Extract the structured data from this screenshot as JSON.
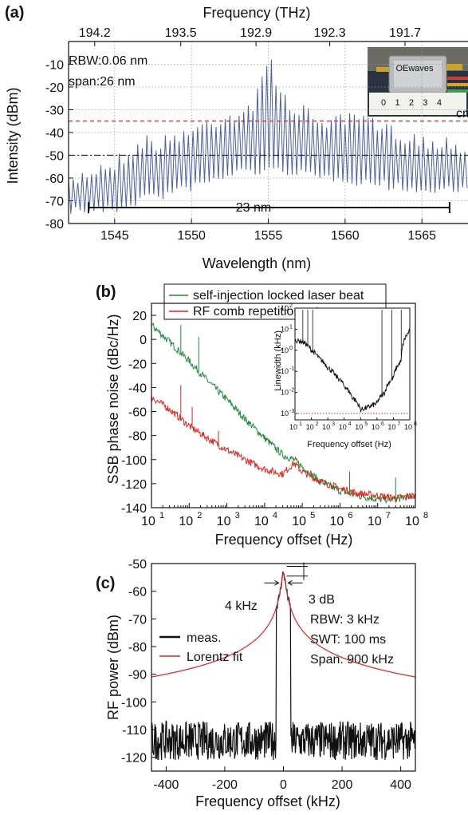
{
  "panels": {
    "a": {
      "label": "(a)",
      "top_axis_title": "Frequency (THz)",
      "x_axis_title": "Wavelength (nm)",
      "y_axis_title": "Intensity (dBm)",
      "annotations": {
        "rbw": "RBW:0.06 nm",
        "span": "span:26 nm",
        "width": "23 nm"
      },
      "inset": {
        "logo": "OEwaves",
        "scale_digits": "0 1 2 3 4",
        "scale_unit": "cm"
      }
    },
    "b": {
      "label": "(b)",
      "x_axis_title": "Frequency offset (Hz)",
      "y_axis_title": "SSB phase noise (dBc/Hz)",
      "inset": {
        "x_axis_title": "Frequency offset (Hz)",
        "y_axis_title": "Linewidth (kHz)"
      }
    },
    "c": {
      "label": "(c)",
      "x_axis_title": "Frequency offset (kHz)",
      "y_axis_title": "RF power (dBm)",
      "annotations": {
        "fwhm": "4 kHz",
        "db": "3 dB",
        "rbw": "RBW: 3 kHz",
        "swt": "SWT: 100 ms",
        "span": "Span: 900 kHz"
      }
    }
  },
  "colors": {
    "spectrum": "#4a5fa8",
    "green": "#1e8c3a",
    "red": "#e0261e",
    "black": "#111111",
    "red_dash": "#e0261e",
    "black_dash": "#222222"
  },
  "chart_data": [
    {
      "id": "a",
      "type": "line",
      "xlabel": "Wavelength (nm)",
      "ylabel": "Intensity (dBm)",
      "x2label": "Frequency (THz)",
      "xlim": [
        1542,
        1568
      ],
      "ylim": [
        -80,
        0
      ],
      "x_ticks": [
        "1545",
        "1550",
        "1555",
        "1560",
        "1565"
      ],
      "x_tick_values": [
        1545,
        1550,
        1555,
        1560,
        1565
      ],
      "y_ticks": [
        "-10",
        "-20",
        "-30",
        "-40",
        "-50",
        "-60",
        "-70",
        "-80"
      ],
      "y_tick_values": [
        -10,
        -20,
        -30,
        -40,
        -50,
        -60,
        -70,
        -80
      ],
      "top_ticks": [
        "194.2",
        "193.5",
        "192.9",
        "192.3",
        "191.7"
      ],
      "top_tick_values": [
        1543.7,
        1549.3,
        1554.2,
        1559.0,
        1563.9
      ],
      "grid": true,
      "reference_lines": [
        {
          "y": -35,
          "style": "dashed",
          "color": "red"
        },
        {
          "y": -50,
          "style": "dash-dot",
          "color": "black"
        }
      ],
      "span_marker": {
        "x_start": 1543.3,
        "x_end": 1566.8,
        "y": -73,
        "label": "23 nm"
      },
      "envelope": {
        "x": [
          1542,
          1543,
          1544,
          1545,
          1546,
          1547,
          1548,
          1549,
          1550,
          1551,
          1552,
          1553,
          1554,
          1555,
          1556,
          1557,
          1558,
          1559,
          1560,
          1561,
          1562,
          1563,
          1564,
          1565,
          1566,
          1567,
          1568
        ],
        "peak": [
          -60,
          -55,
          -52,
          -50,
          -45,
          -40,
          -42,
          -38,
          -36,
          -33,
          -30,
          -28,
          -25,
          -8,
          -22,
          -27,
          -30,
          -32,
          -32,
          -30,
          -34,
          -36,
          -38,
          -40,
          -42,
          -40,
          -45
        ],
        "floor": [
          -72,
          -72,
          -72,
          -72,
          -70,
          -66,
          -66,
          -64,
          -62,
          -60,
          -58,
          -55,
          -55,
          -55,
          -55,
          -55,
          -58,
          -58,
          -58,
          -60,
          -60,
          -62,
          -62,
          -64,
          -64,
          -62,
          -64
        ]
      },
      "peak_spacing_nm": 0.3
    },
    {
      "id": "b",
      "type": "line",
      "xlabel": "Frequency offset (Hz)",
      "ylabel": "SSB phase noise (dBc/Hz)",
      "xscale": "log",
      "xlim": [
        10,
        100000000
      ],
      "ylim": [
        -140,
        30
      ],
      "x_ticks": [
        "10",
        "10",
        "10",
        "10",
        "10",
        "10",
        "10",
        "10"
      ],
      "x_tick_exponents": [
        "1",
        "2",
        "3",
        "4",
        "5",
        "6",
        "7",
        "8"
      ],
      "x_tick_values": [
        10,
        100,
        1000,
        10000,
        100000,
        1000000,
        10000000,
        100000000
      ],
      "y_ticks": [
        "20",
        "0",
        "-20",
        "-40",
        "-60",
        "-80",
        "-100",
        "-120",
        "-140"
      ],
      "y_tick_values": [
        20,
        0,
        -20,
        -40,
        -60,
        -80,
        -100,
        -120,
        -140
      ],
      "legend_position": "top",
      "series": [
        {
          "name": "self-injection locked laser beat",
          "color": "green",
          "x": [
            10,
            30,
            100,
            300,
            1000,
            3000,
            10000,
            30000,
            60000,
            100000,
            300000,
            1000000,
            3000000,
            10000000,
            30000000,
            100000000
          ],
          "y": [
            12,
            -2,
            -18,
            -34,
            -50,
            -66,
            -82,
            -96,
            -100,
            -106,
            -118,
            -126,
            -130,
            -133,
            -133,
            -130
          ]
        },
        {
          "name": "RF comb repetition rate",
          "color": "red",
          "x": [
            10,
            30,
            100,
            300,
            1000,
            3000,
            10000,
            30000,
            60000,
            100000,
            300000,
            1000000,
            3000000,
            10000000,
            30000000,
            100000000
          ],
          "y": [
            -48,
            -58,
            -72,
            -82,
            -92,
            -100,
            -108,
            -112,
            -103,
            -110,
            -118,
            -124,
            -128,
            -130,
            -132,
            -130
          ]
        }
      ],
      "spurs": {
        "green": [
          {
            "x": 60,
            "y": 12
          },
          {
            "x": 180,
            "y": 2
          },
          {
            "x": 1800000,
            "y": -110
          },
          {
            "x": 30000000,
            "y": -115
          }
        ],
        "red": [
          {
            "x": 60,
            "y": -38
          },
          {
            "x": 120,
            "y": -56
          },
          {
            "x": 600,
            "y": -76
          }
        ]
      },
      "inset": {
        "type": "line",
        "xlabel": "Frequency offset (Hz)",
        "ylabel": "Linewidth (kHz)",
        "xscale": "log",
        "yscale": "log",
        "xlim": [
          10,
          100000000
        ],
        "ylim": [
          0.0005,
          100
        ],
        "x_ticks": [
          "10",
          "10",
          "10",
          "10",
          "10",
          "10",
          "10",
          "10"
        ],
        "x_tick_exponents": [
          "1",
          "2",
          "3",
          "4",
          "5",
          "6",
          "7",
          "8"
        ],
        "x_tick_values": [
          10,
          100,
          1000,
          10000,
          100000,
          1000000,
          10000000,
          100000000
        ],
        "y_ticks": [
          "10",
          "10",
          "10",
          "10",
          "10",
          "10"
        ],
        "y_tick_exponents": [
          "-3",
          "-2",
          "-1",
          "0",
          "1",
          "2"
        ],
        "y_tick_values": [
          0.001,
          0.01,
          0.1,
          1,
          10,
          100
        ],
        "reference_line": {
          "y": 0.001,
          "color": "red",
          "style": "dotted"
        },
        "series": [
          {
            "color": "black",
            "x": [
              10,
              30,
              100,
              300,
              1000,
              3000,
              10000,
              30000,
              100000,
              300000,
              1000000,
              3000000,
              10000000,
              30000000,
              100000000
            ],
            "y": [
              3,
              2.5,
              1,
              0.4,
              0.15,
              0.06,
              0.02,
              0.006,
              0.0015,
              0.002,
              0.003,
              0.01,
              0.05,
              0.3,
              8
            ]
          }
        ]
      }
    },
    {
      "id": "c",
      "type": "line",
      "xlabel": "Frequency offset (kHz)",
      "ylabel": "RF power (dBm)",
      "xlim": [
        -450,
        450
      ],
      "ylim": [
        -125,
        -50
      ],
      "x_ticks": [
        "-400",
        "-200",
        "0",
        "200",
        "400"
      ],
      "x_tick_values": [
        -400,
        -200,
        0,
        200,
        400
      ],
      "y_ticks": [
        "-50",
        "-60",
        "-70",
        "-80",
        "-90",
        "-100",
        "-110",
        "-120"
      ],
      "y_tick_values": [
        -50,
        -60,
        -70,
        -80,
        -90,
        -100,
        -110,
        -120
      ],
      "legend_position": "left",
      "peak": {
        "x": 0,
        "y": -53.5
      },
      "noise_floor": -116,
      "series": [
        {
          "name": "meas.",
          "color": "black",
          "noise_band": [
            -121,
            -107
          ]
        },
        {
          "name": "Lorentz fit",
          "color": "red",
          "center": 0,
          "fwhm_khz": 4,
          "peak": -53.5,
          "floor": -116
        }
      ]
    }
  ]
}
